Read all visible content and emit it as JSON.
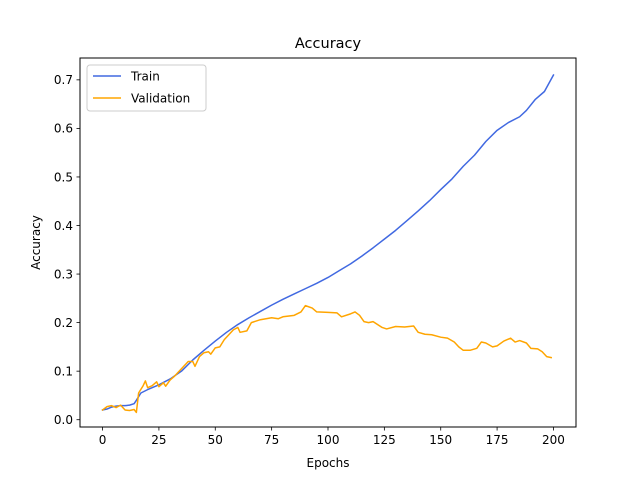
{
  "chart_data": {
    "type": "line",
    "title": "Accuracy",
    "xlabel": "Epochs",
    "ylabel": "Accuracy",
    "xlim": [
      -10,
      210
    ],
    "ylim": [
      -0.015,
      0.745
    ],
    "xticks": [
      0,
      25,
      50,
      75,
      100,
      125,
      150,
      175,
      200
    ],
    "yticks": [
      0.0,
      0.1,
      0.2,
      0.3,
      0.4,
      0.5,
      0.6,
      0.7
    ],
    "xtick_labels": [
      "0",
      "25",
      "50",
      "75",
      "100",
      "125",
      "150",
      "175",
      "200"
    ],
    "ytick_labels": [
      "0.0",
      "0.1",
      "0.2",
      "0.3",
      "0.4",
      "0.5",
      "0.6",
      "0.7"
    ],
    "grid": false,
    "legend_position": "top-left",
    "series": [
      {
        "name": "Train",
        "color": "#4169e1",
        "points": [
          [
            0,
            0.02
          ],
          [
            2,
            0.022
          ],
          [
            4,
            0.026
          ],
          [
            6,
            0.028
          ],
          [
            8,
            0.029
          ],
          [
            10,
            0.029
          ],
          [
            12,
            0.03
          ],
          [
            14,
            0.033
          ],
          [
            15,
            0.04
          ],
          [
            17,
            0.055
          ],
          [
            20,
            0.062
          ],
          [
            25,
            0.072
          ],
          [
            30,
            0.084
          ],
          [
            35,
            0.1
          ],
          [
            40,
            0.123
          ],
          [
            45,
            0.143
          ],
          [
            50,
            0.162
          ],
          [
            55,
            0.18
          ],
          [
            60,
            0.196
          ],
          [
            65,
            0.21
          ],
          [
            70,
            0.223
          ],
          [
            75,
            0.236
          ],
          [
            80,
            0.248
          ],
          [
            85,
            0.259
          ],
          [
            90,
            0.27
          ],
          [
            95,
            0.281
          ],
          [
            100,
            0.293
          ],
          [
            105,
            0.307
          ],
          [
            110,
            0.321
          ],
          [
            115,
            0.337
          ],
          [
            120,
            0.354
          ],
          [
            125,
            0.372
          ],
          [
            130,
            0.39
          ],
          [
            135,
            0.41
          ],
          [
            140,
            0.43
          ],
          [
            145,
            0.451
          ],
          [
            150,
            0.474
          ],
          [
            155,
            0.496
          ],
          [
            160,
            0.522
          ],
          [
            165,
            0.545
          ],
          [
            170,
            0.573
          ],
          [
            175,
            0.596
          ],
          [
            180,
            0.612
          ],
          [
            185,
            0.624
          ],
          [
            188,
            0.637
          ],
          [
            192,
            0.66
          ],
          [
            196,
            0.676
          ],
          [
            200,
            0.71
          ]
        ]
      },
      {
        "name": "Validation",
        "color": "#ffa500",
        "points": [
          [
            0,
            0.02
          ],
          [
            2,
            0.027
          ],
          [
            4,
            0.029
          ],
          [
            6,
            0.025
          ],
          [
            8,
            0.03
          ],
          [
            10,
            0.02
          ],
          [
            12,
            0.019
          ],
          [
            14,
            0.021
          ],
          [
            15,
            0.015
          ],
          [
            16,
            0.055
          ],
          [
            18,
            0.07
          ],
          [
            19,
            0.08
          ],
          [
            20,
            0.066
          ],
          [
            22,
            0.07
          ],
          [
            24,
            0.078
          ],
          [
            25,
            0.068
          ],
          [
            27,
            0.076
          ],
          [
            28,
            0.069
          ],
          [
            30,
            0.082
          ],
          [
            32,
            0.09
          ],
          [
            35,
            0.105
          ],
          [
            38,
            0.12
          ],
          [
            40,
            0.12
          ],
          [
            41,
            0.11
          ],
          [
            43,
            0.13
          ],
          [
            45,
            0.138
          ],
          [
            47,
            0.14
          ],
          [
            48,
            0.135
          ],
          [
            50,
            0.148
          ],
          [
            52,
            0.15
          ],
          [
            54,
            0.165
          ],
          [
            56,
            0.175
          ],
          [
            58,
            0.185
          ],
          [
            60,
            0.19
          ],
          [
            61,
            0.18
          ],
          [
            64,
            0.183
          ],
          [
            66,
            0.2
          ],
          [
            70,
            0.206
          ],
          [
            75,
            0.21
          ],
          [
            78,
            0.208
          ],
          [
            80,
            0.212
          ],
          [
            85,
            0.215
          ],
          [
            88,
            0.222
          ],
          [
            90,
            0.235
          ],
          [
            93,
            0.23
          ],
          [
            95,
            0.222
          ],
          [
            100,
            0.221
          ],
          [
            104,
            0.22
          ],
          [
            106,
            0.212
          ],
          [
            110,
            0.218
          ],
          [
            112,
            0.222
          ],
          [
            114,
            0.215
          ],
          [
            116,
            0.202
          ],
          [
            118,
            0.2
          ],
          [
            120,
            0.202
          ],
          [
            124,
            0.19
          ],
          [
            126,
            0.187
          ],
          [
            130,
            0.192
          ],
          [
            134,
            0.191
          ],
          [
            138,
            0.193
          ],
          [
            140,
            0.18
          ],
          [
            143,
            0.176
          ],
          [
            146,
            0.175
          ],
          [
            150,
            0.17
          ],
          [
            153,
            0.168
          ],
          [
            156,
            0.16
          ],
          [
            158,
            0.15
          ],
          [
            160,
            0.143
          ],
          [
            163,
            0.143
          ],
          [
            166,
            0.147
          ],
          [
            168,
            0.16
          ],
          [
            170,
            0.158
          ],
          [
            173,
            0.15
          ],
          [
            175,
            0.152
          ],
          [
            178,
            0.162
          ],
          [
            181,
            0.168
          ],
          [
            183,
            0.16
          ],
          [
            185,
            0.163
          ],
          [
            188,
            0.158
          ],
          [
            190,
            0.147
          ],
          [
            193,
            0.146
          ],
          [
            195,
            0.14
          ],
          [
            197,
            0.13
          ],
          [
            199,
            0.128
          ]
        ]
      }
    ]
  }
}
